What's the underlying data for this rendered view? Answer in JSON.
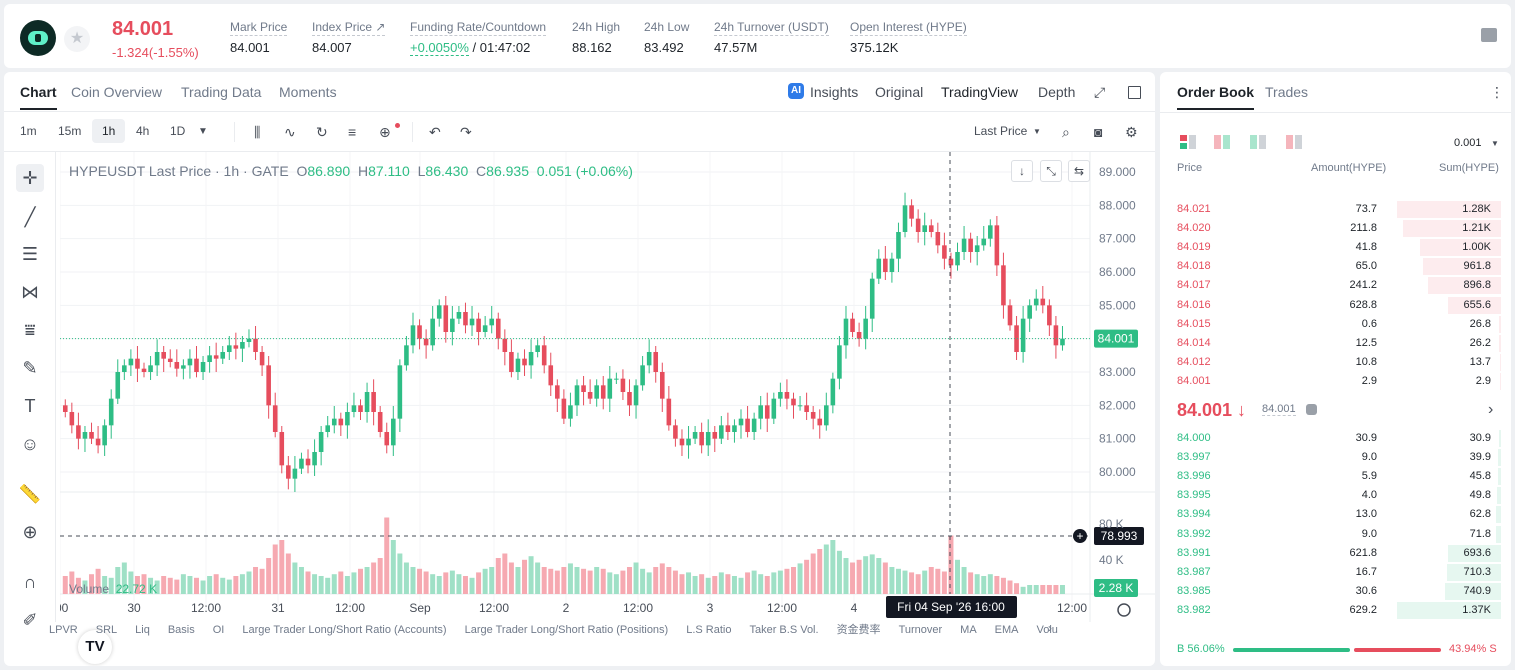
{
  "header": {
    "price": "84.001",
    "change": "-1.324(-1.55%)",
    "stats": [
      {
        "label": "Mark Price",
        "value": "84.001"
      },
      {
        "label": "Index Price ↗",
        "value": "84.007"
      },
      {
        "label": "Funding Rate/Countdown",
        "value_green": "+0.0050%",
        "value": " / 01:47:02"
      },
      {
        "label": "24h High",
        "value": "88.162"
      },
      {
        "label": "24h Low",
        "value": "83.492"
      },
      {
        "label": "24h Turnover (USDT)",
        "value": "47.57M"
      },
      {
        "label": "Open Interest (HYPE)",
        "value": "375.12K"
      }
    ]
  },
  "chart_tabs": [
    "Chart",
    "Coin Overview",
    "Trading Data",
    "Moments"
  ],
  "view_tabs": [
    "Insights",
    "Original",
    "TradingView",
    "Depth"
  ],
  "timeframes": [
    "1m",
    "15m",
    "1h",
    "4h",
    "1D"
  ],
  "price_type": "Last Price",
  "legend": {
    "symbol": "HYPEUSDT Last Price · 1h · GATE",
    "o_label": "O",
    "o": "86.890",
    "h_label": "H",
    "h": "87.110",
    "l_label": "L",
    "l": "86.430",
    "c_label": "C",
    "c": "86.935",
    "chg": "0.051 (+0.06%)"
  },
  "volume_legend": {
    "label": "Volume",
    "value": "22.72 K"
  },
  "indicators": [
    "LPVR",
    "SRL",
    "Liq",
    "Basis",
    "OI",
    "Large Trader Long/Short Ratio (Accounts)",
    "Large Trader Long/Short Ratio (Positions)",
    "L.S Ratio",
    "Taker B.S Vol.",
    "资金费率",
    "Turnover",
    "MA",
    "EMA",
    "Volu"
  ],
  "chart_data": {
    "type": "candlestick",
    "symbol": "HYPEUSDT",
    "interval": "1h",
    "y_ticks": [
      "89.000",
      "88.000",
      "87.000",
      "86.000",
      "85.000",
      "84.000",
      "83.000",
      "82.000",
      "81.000",
      "80.000"
    ],
    "ylim": [
      79.4,
      89.3
    ],
    "vol_ticks": [
      "80 K",
      "40 K"
    ],
    "x_ticks": [
      ":00",
      "30",
      "12:00",
      "31",
      "12:00",
      "Sep",
      "12:00",
      "2",
      "12:00",
      "3",
      "12:00",
      "4",
      "12:00"
    ],
    "last_price_label": "84.001",
    "crosshair_price": "78.993",
    "crosshair_time": "Fri 04 Sep '26   16:00",
    "volume_last": "2.28 K",
    "closes": [
      81.8,
      81.4,
      81.0,
      81.2,
      81.0,
      80.8,
      81.4,
      82.2,
      83.0,
      83.2,
      83.4,
      83.1,
      83.0,
      83.2,
      83.6,
      83.4,
      83.3,
      83.1,
      83.2,
      83.4,
      83.0,
      83.3,
      83.5,
      83.4,
      83.6,
      83.8,
      83.7,
      83.9,
      84.0,
      83.6,
      83.2,
      82.0,
      81.2,
      80.2,
      79.8,
      80.1,
      80.4,
      80.2,
      80.6,
      81.2,
      81.4,
      81.6,
      81.4,
      81.8,
      82.0,
      81.8,
      82.4,
      81.8,
      81.2,
      80.8,
      81.6,
      83.2,
      83.8,
      84.4,
      84.0,
      83.8,
      84.6,
      85.0,
      84.2,
      84.6,
      84.8,
      84.4,
      84.6,
      84.2,
      84.4,
      84.6,
      84.0,
      83.6,
      83.0,
      83.4,
      83.2,
      83.6,
      83.8,
      83.2,
      82.6,
      82.2,
      81.6,
      82.0,
      82.6,
      82.4,
      82.2,
      82.6,
      82.2,
      82.8,
      82.8,
      82.4,
      82.0,
      82.6,
      83.2,
      83.6,
      83.0,
      82.2,
      81.4,
      81.0,
      80.8,
      81.0,
      81.2,
      80.8,
      81.2,
      81.0,
      81.4,
      81.2,
      81.4,
      81.6,
      81.2,
      81.6,
      82.0,
      81.6,
      82.2,
      82.4,
      82.2,
      82.0,
      82.0,
      81.8,
      81.6,
      81.4,
      82.0,
      82.8,
      83.8,
      84.6,
      84.2,
      84.0,
      84.6,
      85.8,
      86.4,
      86.0,
      86.4,
      87.2,
      88.0,
      87.6,
      87.2,
      87.4,
      87.2,
      86.8,
      86.4,
      86.2,
      86.6,
      87.0,
      86.6,
      86.8,
      87.0,
      87.4,
      86.2,
      85.0,
      84.4,
      83.6,
      84.6,
      85.0,
      85.2,
      85.0,
      84.4,
      83.8,
      84.0
    ],
    "volumes": [
      20,
      25,
      18,
      15,
      22,
      28,
      20,
      18,
      30,
      35,
      25,
      20,
      22,
      18,
      15,
      20,
      18,
      16,
      22,
      20,
      18,
      15,
      20,
      22,
      18,
      16,
      20,
      22,
      25,
      30,
      28,
      40,
      55,
      60,
      45,
      35,
      30,
      25,
      22,
      20,
      18,
      22,
      25,
      20,
      24,
      28,
      30,
      35,
      40,
      85,
      60,
      45,
      35,
      30,
      28,
      25,
      22,
      20,
      24,
      26,
      22,
      20,
      18,
      24,
      28,
      30,
      40,
      45,
      35,
      30,
      38,
      42,
      35,
      30,
      28,
      26,
      30,
      34,
      30,
      28,
      26,
      30,
      28,
      24,
      22,
      26,
      30,
      35,
      28,
      24,
      30,
      34,
      30,
      26,
      22,
      24,
      20,
      22,
      18,
      20,
      24,
      22,
      20,
      18,
      24,
      26,
      22,
      20,
      24,
      26,
      28,
      30,
      34,
      38,
      45,
      50,
      55,
      60,
      48,
      40,
      35,
      38,
      42,
      44,
      40,
      35,
      30,
      28,
      26,
      24,
      22,
      26,
      30,
      28,
      25,
      65,
      38,
      30,
      24,
      22,
      20,
      22,
      20,
      18,
      15,
      12,
      8
    ],
    "grid": true
  },
  "order_book": {
    "tabs": [
      "Order Book",
      "Trades"
    ],
    "precision": "0.001",
    "headers": [
      "Price",
      "Amount(HYPE)",
      "Sum(HYPE)"
    ],
    "asks": [
      {
        "price": "84.021",
        "amount": "73.7",
        "sum": "1.28K",
        "depth": 1.0
      },
      {
        "price": "84.020",
        "amount": "211.8",
        "sum": "1.21K",
        "depth": 0.945
      },
      {
        "price": "84.019",
        "amount": "41.8",
        "sum": "1.00K",
        "depth": 0.78
      },
      {
        "price": "84.018",
        "amount": "65.0",
        "sum": "961.8",
        "depth": 0.75
      },
      {
        "price": "84.017",
        "amount": "241.2",
        "sum": "896.8",
        "depth": 0.7
      },
      {
        "price": "84.016",
        "amount": "628.8",
        "sum": "655.6",
        "depth": 0.51
      },
      {
        "price": "84.015",
        "amount": "0.6",
        "sum": "26.8",
        "depth": 0.02
      },
      {
        "price": "84.014",
        "amount": "12.5",
        "sum": "26.2",
        "depth": 0.02
      },
      {
        "price": "84.012",
        "amount": "10.8",
        "sum": "13.7",
        "depth": 0.01
      },
      {
        "price": "84.001",
        "amount": "2.9",
        "sum": "2.9",
        "depth": 0.005
      }
    ],
    "mid_price": "84.001 ↓",
    "mark_price": "84.001",
    "bids": [
      {
        "price": "84.000",
        "amount": "30.9",
        "sum": "30.9",
        "depth": 0.02
      },
      {
        "price": "83.997",
        "amount": "9.0",
        "sum": "39.9",
        "depth": 0.03
      },
      {
        "price": "83.996",
        "amount": "5.9",
        "sum": "45.8",
        "depth": 0.03
      },
      {
        "price": "83.995",
        "amount": "4.0",
        "sum": "49.8",
        "depth": 0.04
      },
      {
        "price": "83.994",
        "amount": "13.0",
        "sum": "62.8",
        "depth": 0.05
      },
      {
        "price": "83.992",
        "amount": "9.0",
        "sum": "71.8",
        "depth": 0.05
      },
      {
        "price": "83.991",
        "amount": "621.8",
        "sum": "693.6",
        "depth": 0.51
      },
      {
        "price": "83.987",
        "amount": "16.7",
        "sum": "710.3",
        "depth": 0.52
      },
      {
        "price": "83.985",
        "amount": "30.6",
        "sum": "740.9",
        "depth": 0.54
      },
      {
        "price": "83.982",
        "amount": "629.2",
        "sum": "1.37K",
        "depth": 1.0
      }
    ],
    "buy_ratio": "B 56.06%",
    "sell_ratio": "43.94% S",
    "buy_fraction": 0.5606
  }
}
